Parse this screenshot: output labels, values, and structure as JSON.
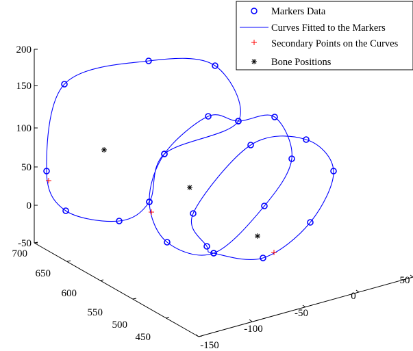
{
  "chart_data": {
    "type": "scatter",
    "title": "",
    "legend": {
      "placement": "top-right",
      "entries": [
        {
          "label": "Markers Data",
          "marker": "circle",
          "color": "#0000ff"
        },
        {
          "label": "Curves Fitted to the Markers",
          "marker": "line",
          "color": "#0000ff"
        },
        {
          "label": "Secondary Points on the Curves",
          "marker": "plus",
          "color": "#ff0000"
        },
        {
          "label": "Bone Positions",
          "marker": "asterisk",
          "color": "#000000"
        }
      ]
    },
    "axes": {
      "z": {
        "label": "",
        "range": [
          -50,
          200
        ],
        "ticks": [
          "200",
          "150",
          "100",
          "50",
          "0",
          "-50"
        ]
      },
      "y": {
        "label": "",
        "range": [
          450,
          700
        ],
        "ticks": [
          "700",
          "650",
          "600",
          "550",
          "500",
          "450"
        ]
      },
      "x": {
        "label": "",
        "range": [
          -150,
          50
        ],
        "ticks": [
          "-150",
          "-100",
          "-50",
          "0",
          "50"
        ]
      },
      "grid": false,
      "box": false
    },
    "series": [
      {
        "name": "Markers Data",
        "curves": [
          [
            [
              68,
              250
            ],
            [
              94,
              123
            ],
            [
              217,
              89
            ],
            [
              314,
              96
            ],
            [
              348,
              177
            ],
            [
              240,
              225
            ],
            [
              218,
              295
            ],
            [
              174,
              323
            ],
            [
              96,
              308
            ]
          ],
          [
            [
              240,
              225
            ],
            [
              304,
              170
            ],
            [
              348,
              177
            ],
            [
              401,
              171
            ],
            [
              426,
              232
            ],
            [
              386,
              301
            ],
            [
              312,
              370
            ],
            [
              244,
              354
            ],
            [
              218,
              295
            ]
          ],
          [
            [
              366,
              212
            ],
            [
              447,
              204
            ],
            [
              487,
              250
            ],
            [
              453,
              325
            ],
            [
              384,
              377
            ],
            [
              312,
              370
            ],
            [
              302,
              360
            ],
            [
              282,
              312
            ]
          ]
        ]
      },
      {
        "name": "Bone Positions",
        "points": [
          [
            152,
            219
          ],
          [
            277,
            274
          ],
          [
            376,
            345
          ]
        ]
      },
      {
        "name": "Secondary Points on the Curves",
        "points": [
          [
            71,
            264
          ],
          [
            221,
            310
          ],
          [
            400,
            369
          ]
        ]
      }
    ]
  }
}
